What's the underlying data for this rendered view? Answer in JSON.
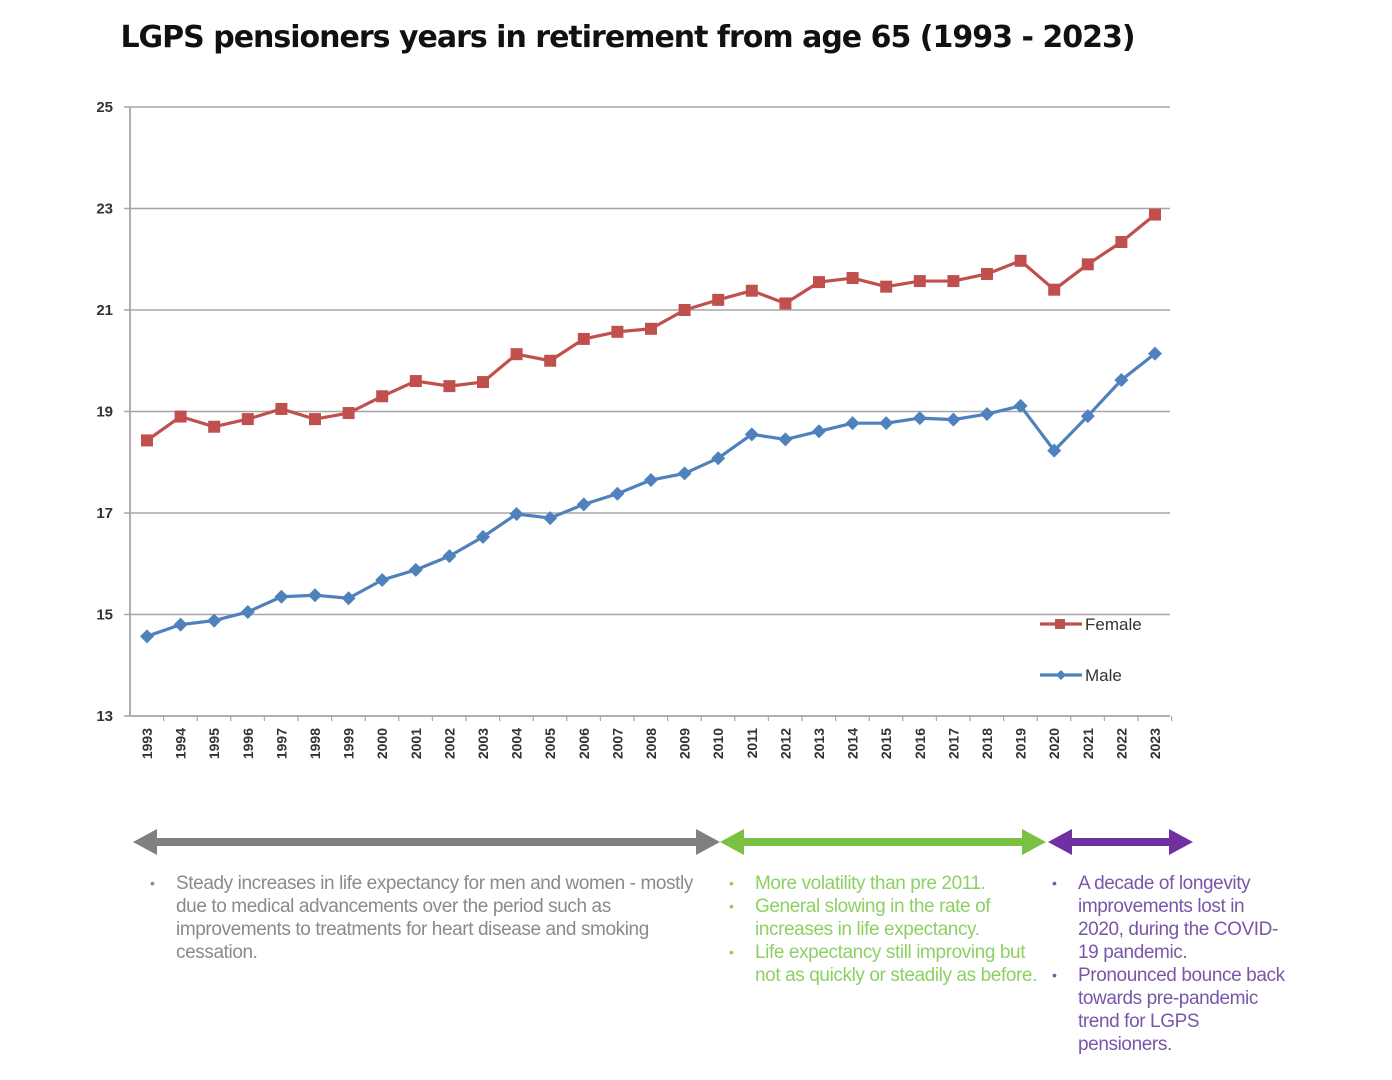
{
  "chart_data": {
    "type": "line",
    "title": "LGPS pensioners years in retirement from age 65 (1993 - 2023)",
    "xlabel": "",
    "ylabel": "",
    "ylim": [
      13,
      25
    ],
    "yticks": [
      "13",
      "15",
      "17",
      "19",
      "21",
      "23",
      "25"
    ],
    "ytick_values": [
      13,
      15,
      17,
      19,
      21,
      23,
      25
    ],
    "grid": true,
    "legend_position": "bottom-right",
    "categories": [
      "1993",
      "1994",
      "1995",
      "1996",
      "1997",
      "1998",
      "1999",
      "2000",
      "2001",
      "2002",
      "2003",
      "2004",
      "2005",
      "2006",
      "2007",
      "2008",
      "2009",
      "2010",
      "2011",
      "2012",
      "2013",
      "2014",
      "2015",
      "2016",
      "2017",
      "2018",
      "2019",
      "2020",
      "2021",
      "2022",
      "2023"
    ],
    "series": [
      {
        "name": "Female",
        "color": "#c0504d",
        "marker": "square",
        "values": [
          18.43,
          18.9,
          18.7,
          18.85,
          19.05,
          18.85,
          18.97,
          19.3,
          19.6,
          19.5,
          19.58,
          20.13,
          20.0,
          20.43,
          20.57,
          20.63,
          21.0,
          21.2,
          21.38,
          21.13,
          21.55,
          21.63,
          21.46,
          21.57,
          21.57,
          21.71,
          21.97,
          21.4,
          21.9,
          22.34,
          22.88
        ]
      },
      {
        "name": "Male",
        "color": "#4f81bd",
        "marker": "diamond",
        "values": [
          14.57,
          14.8,
          14.88,
          15.05,
          15.35,
          15.38,
          15.32,
          15.68,
          15.88,
          16.15,
          16.53,
          16.98,
          16.9,
          17.17,
          17.38,
          17.65,
          17.78,
          18.08,
          18.55,
          18.45,
          18.61,
          18.77,
          18.77,
          18.87,
          18.84,
          18.95,
          19.11,
          18.23,
          18.91,
          19.62,
          20.14
        ]
      }
    ],
    "annotations": [
      {
        "period": [
          "1993",
          "2010"
        ],
        "color": "#808080",
        "bullets": [
          "Steady increases in life expectancy for men and women - mostly due to medical advancements over the period such as improvements to treatments for heart disease and smoking cessation."
        ]
      },
      {
        "period": [
          "2010",
          "2019"
        ],
        "color": "#7ac143",
        "bullets": [
          "More volatility than pre 2011.",
          "General slowing in the rate of increases in life expectancy.",
          "Life expectancy still improving but not as quickly or steadily as before."
        ]
      },
      {
        "period": [
          "2020",
          "2023"
        ],
        "color": "#7030a0",
        "bullets": [
          "A decade of longevity improvements lost in 2020, during the COVID-19 pandemic.",
          "Pronounced bounce back towards pre-pandemic trend for LGPS pensioners."
        ]
      }
    ]
  }
}
